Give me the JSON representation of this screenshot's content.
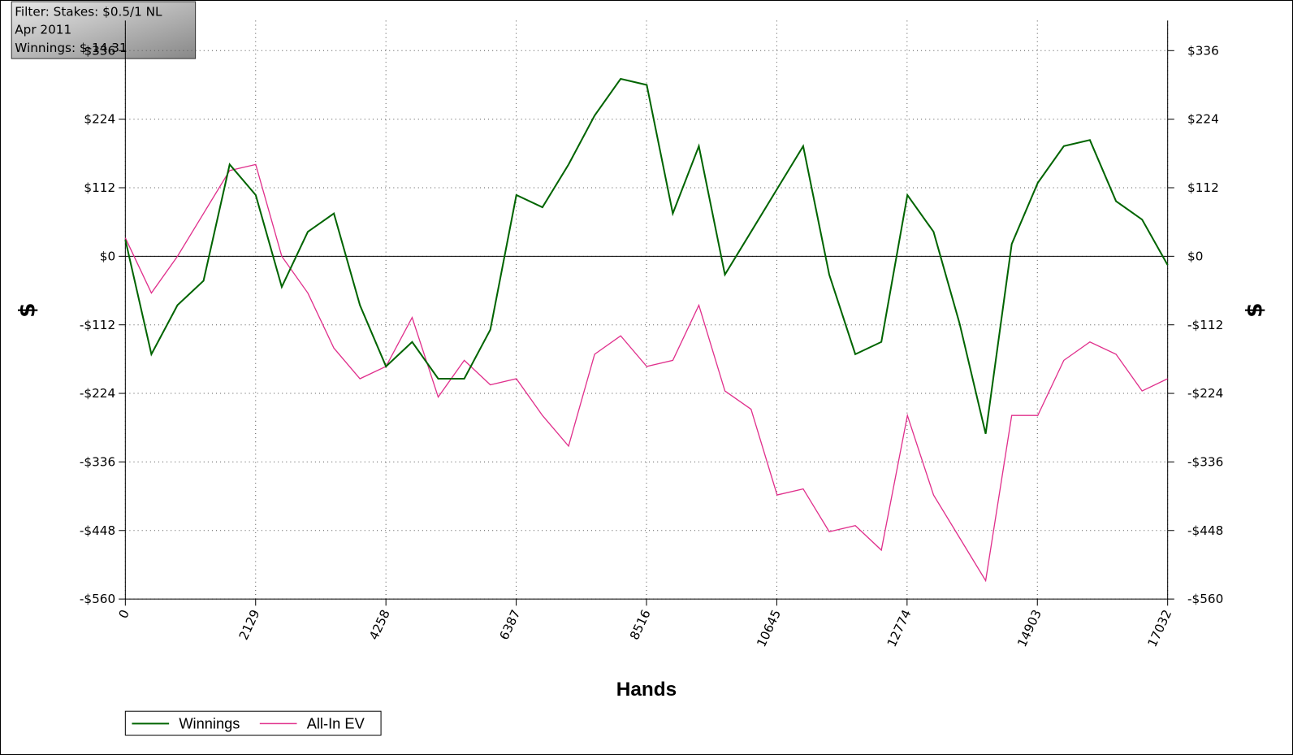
{
  "chart_data": {
    "type": "line",
    "annotations": [
      "Filter: Stakes: $0.5/1 NL",
      "Apr 2011",
      "Winnings: $-14.31"
    ],
    "x_label": "Hands",
    "y_label": "$",
    "x": [
      0,
      426,
      852,
      1278,
      1704,
      2130,
      2556,
      2982,
      3408,
      3834,
      4260,
      4686,
      5112,
      5538,
      5964,
      6390,
      6816,
      7242,
      7668,
      8094,
      8520,
      8946,
      9372,
      9798,
      10224,
      10650,
      11076,
      11502,
      11928,
      12354,
      12780,
      13206,
      13632,
      14058,
      14484,
      14910,
      15336,
      15762,
      16188,
      16614,
      17032
    ],
    "series": [
      {
        "name": "Winnings",
        "color": "#006400",
        "values": [
          27,
          -160,
          -80,
          -40,
          150,
          100,
          -50,
          40,
          70,
          -80,
          -180,
          -140,
          -200,
          -200,
          -120,
          100,
          80,
          150,
          230,
          290,
          280,
          70,
          180,
          -30,
          40,
          110,
          180,
          -30,
          -160,
          -140,
          100,
          40,
          -110,
          -290,
          20,
          120,
          180,
          190,
          90,
          60,
          -14.31
        ]
      },
      {
        "name": "All-In EV",
        "color": "#e0308c",
        "values": [
          30,
          -60,
          0,
          70,
          140,
          150,
          0,
          -60,
          -150,
          -200,
          -180,
          -100,
          -230,
          -170,
          -210,
          -200,
          -260,
          -310,
          -160,
          -130,
          -180,
          -170,
          -80,
          -220,
          -250,
          -390,
          -380,
          -450,
          -440,
          -480,
          -260,
          -390,
          -460,
          -530,
          -260,
          -260,
          -170,
          -140,
          -160,
          -220,
          -200
        ]
      }
    ],
    "xlim": [
      0,
      17032
    ],
    "xticks": [
      0,
      2129,
      4258,
      6387,
      8516,
      10645,
      12774,
      14903,
      17032
    ],
    "ylim": [
      -560,
      385
    ],
    "yticks": [
      {
        "value": -560,
        "label": "-$560"
      },
      {
        "value": -448,
        "label": "-$448"
      },
      {
        "value": -336,
        "label": "-$336"
      },
      {
        "value": -224,
        "label": "-$224"
      },
      {
        "value": -112,
        "label": "-$112"
      },
      {
        "value": 0,
        "label": "$0"
      },
      {
        "value": 112,
        "label": "$112"
      },
      {
        "value": 224,
        "label": "$224"
      },
      {
        "value": 336,
        "label": "$336"
      }
    ],
    "grid": true
  }
}
